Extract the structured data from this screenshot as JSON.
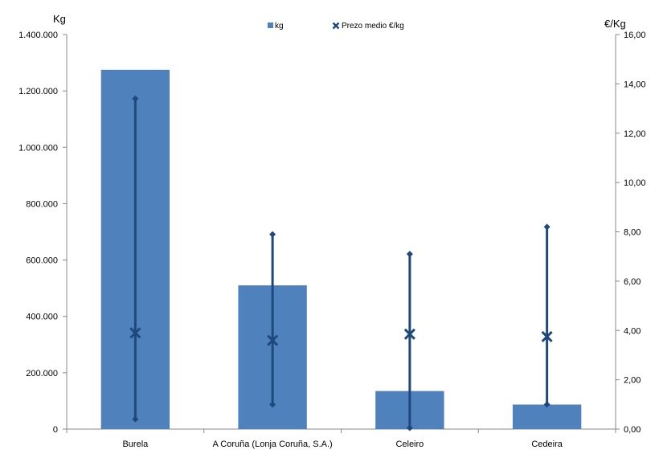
{
  "chart_data": {
    "type": "bar",
    "categories": [
      "Burela",
      "A Coruña (Lonja Coruña, S.A.)",
      "Celeiro",
      "Cedeira"
    ],
    "left_axis": {
      "label": "Kg",
      "ylim": [
        0,
        1400000
      ],
      "ticks": [
        0,
        200000,
        400000,
        600000,
        800000,
        1000000,
        1200000,
        1400000
      ],
      "tick_labels": [
        "0",
        "200.000",
        "400.000",
        "600.000",
        "800.000",
        "1.000.000",
        "1.200.000",
        "1.400.000"
      ]
    },
    "right_axis": {
      "label": "€/Kg",
      "ylim": [
        0,
        16
      ],
      "ticks": [
        0,
        2,
        4,
        6,
        8,
        10,
        12,
        14,
        16
      ],
      "tick_labels": [
        "0,00",
        "2,00",
        "4,00",
        "6,00",
        "8,00",
        "10,00",
        "12,00",
        "14,00",
        "16,00"
      ]
    },
    "series": [
      {
        "name": "kg",
        "kind": "bar",
        "axis": "left",
        "color": "#4F81BD",
        "values": [
          1275000,
          510000,
          135000,
          87000
        ]
      },
      {
        "name": "Prezo medio €/kg",
        "kind": "marker-with-range",
        "axis": "right",
        "color": "#1F497D",
        "values": [
          3.9,
          3.6,
          3.85,
          3.75
        ],
        "min": [
          0.4,
          1.0,
          0.05,
          1.0
        ],
        "max": [
          13.4,
          7.9,
          7.1,
          8.2
        ]
      }
    ],
    "legend": {
      "position": "top",
      "entries": [
        "kg",
        "Prezo medio €/kg"
      ]
    },
    "grid": false
  }
}
